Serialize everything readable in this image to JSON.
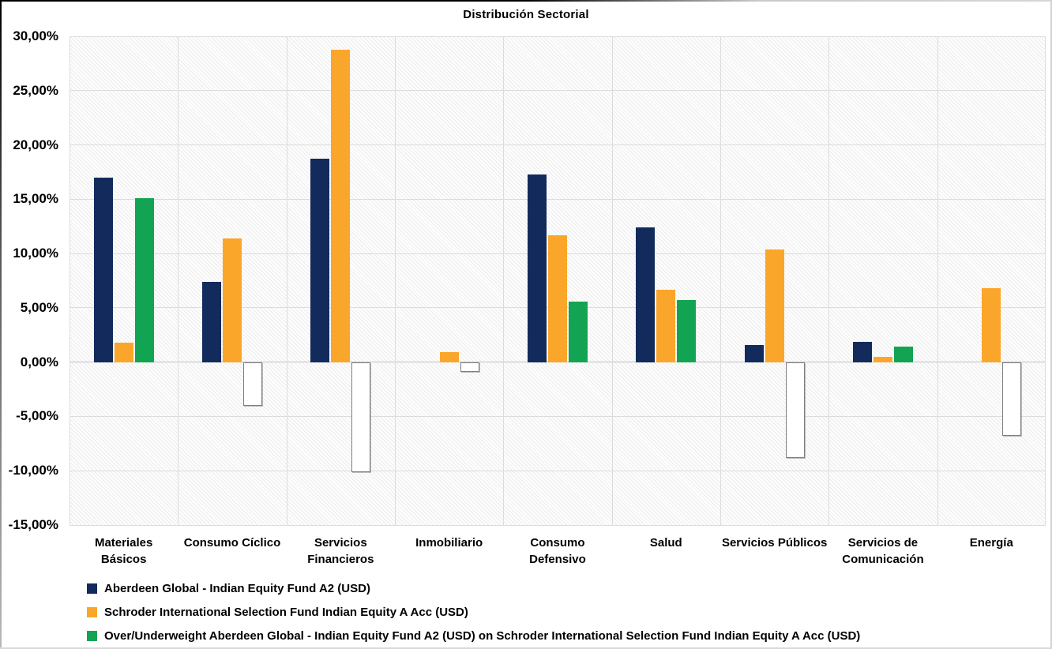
{
  "chart_data": {
    "type": "bar",
    "title": "Distribución Sectorial",
    "categories": [
      "Materiales Básicos",
      "Consumo Cíclico",
      "Servicios Financieros",
      "Inmobiliario",
      "Consumo Defensivo",
      "Salud",
      "Servicios Públicos",
      "Servicios de Comunicación",
      "Energía"
    ],
    "category_label_lines": [
      [
        "Materiales",
        "Básicos"
      ],
      [
        "Consumo Cíclico"
      ],
      [
        "Servicios",
        "Financieros"
      ],
      [
        "Inmobiliario"
      ],
      [
        "Consumo",
        "Defensivo"
      ],
      [
        "Salud"
      ],
      [
        "Servicios Públicos"
      ],
      [
        "Servicios de",
        "Comunicación"
      ],
      [
        "Energía"
      ]
    ],
    "series": [
      {
        "name": "Aberdeen Global - Indian Equity Fund A2 (USD)",
        "color": "#122B5C",
        "values": [
          17.0,
          7.4,
          18.7,
          0.0,
          17.3,
          12.4,
          1.6,
          1.9,
          0.0
        ]
      },
      {
        "name": "Schroder International Selection Fund Indian Equity A Acc (USD)",
        "color": "#FAA62B",
        "values": [
          1.8,
          11.4,
          28.8,
          0.9,
          11.7,
          6.7,
          10.4,
          0.5,
          6.8
        ]
      },
      {
        "name": "Over/Underweight Aberdeen Global - Indian Equity Fund A2 (USD) on Schroder International Selection Fund Indian Equity A Acc (USD)",
        "color_positive": "#12A452",
        "negative_fill": "#FFFFFF",
        "negative_border": "#7F7F7F",
        "values": [
          15.1,
          -4.0,
          -10.1,
          -0.9,
          5.6,
          5.7,
          -8.8,
          1.4,
          -6.8
        ]
      }
    ],
    "ylim": [
      -15,
      30
    ],
    "ytick_step": 5,
    "yticks": [
      {
        "value": 30,
        "label": "30,00%"
      },
      {
        "value": 25,
        "label": "25,00%"
      },
      {
        "value": 20,
        "label": "20,00%"
      },
      {
        "value": 15,
        "label": "15,00%"
      },
      {
        "value": 10,
        "label": "10,00%"
      },
      {
        "value": 5,
        "label": "5,00%"
      },
      {
        "value": 0,
        "label": "0,00%"
      },
      {
        "value": -5,
        "label": "-5,00%"
      },
      {
        "value": -10,
        "label": "-10,00%"
      },
      {
        "value": -15,
        "label": "-15,00%"
      }
    ],
    "grid": true,
    "legend_position": "bottom-left",
    "colors": {
      "gridline": "#DCDCDC",
      "zero_line": "#C2C2C2",
      "text": "#000000"
    }
  }
}
